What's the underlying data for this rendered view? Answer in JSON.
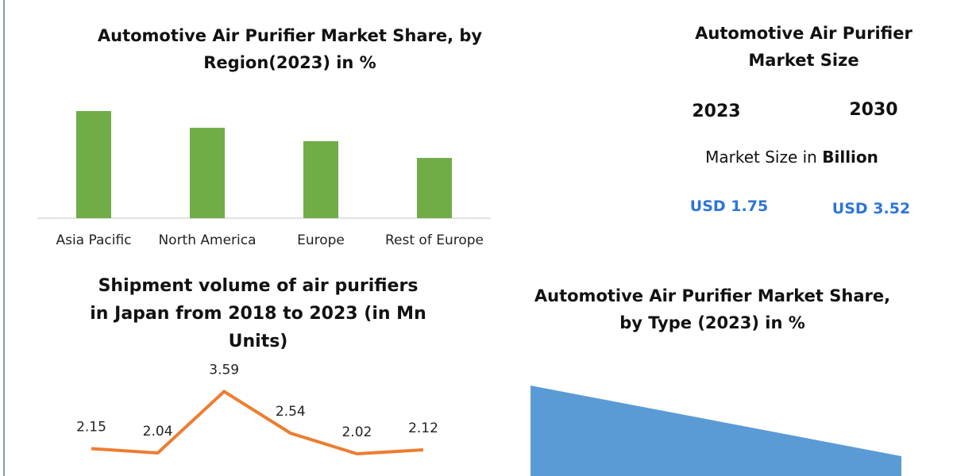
{
  "chart_data": [
    {
      "type": "bar",
      "title": "Automotive Air Purifier Market Share, by Region(2023) in %",
      "categories": [
        "Asia Pacific",
        "North America",
        "Europe",
        "Rest of Europe"
      ],
      "values": [
        32,
        27,
        23,
        18
      ],
      "color": "#70ad47"
    },
    {
      "type": "line",
      "title": "Shipment volume of air purifiers in Japan from 2018 to 2023 (in Mn Units)",
      "categories": [
        null,
        null,
        null,
        null,
        null,
        null
      ],
      "values": [
        2.15,
        2.04,
        3.59,
        2.54,
        2.02,
        2.12
      ],
      "color": "#ed7d31"
    },
    {
      "type": "pie",
      "title": "Automotive Air Purifier Market Share, by Type (2023) in %",
      "color": "#5b9bd5"
    }
  ],
  "market_size": {
    "title": "Automotive Air Purifier Market Size",
    "years": [
      "2023",
      "2030"
    ],
    "label": "Market Size in",
    "label_bold": "Billion",
    "values": [
      "USD 1.75",
      "USD 3.52"
    ]
  }
}
